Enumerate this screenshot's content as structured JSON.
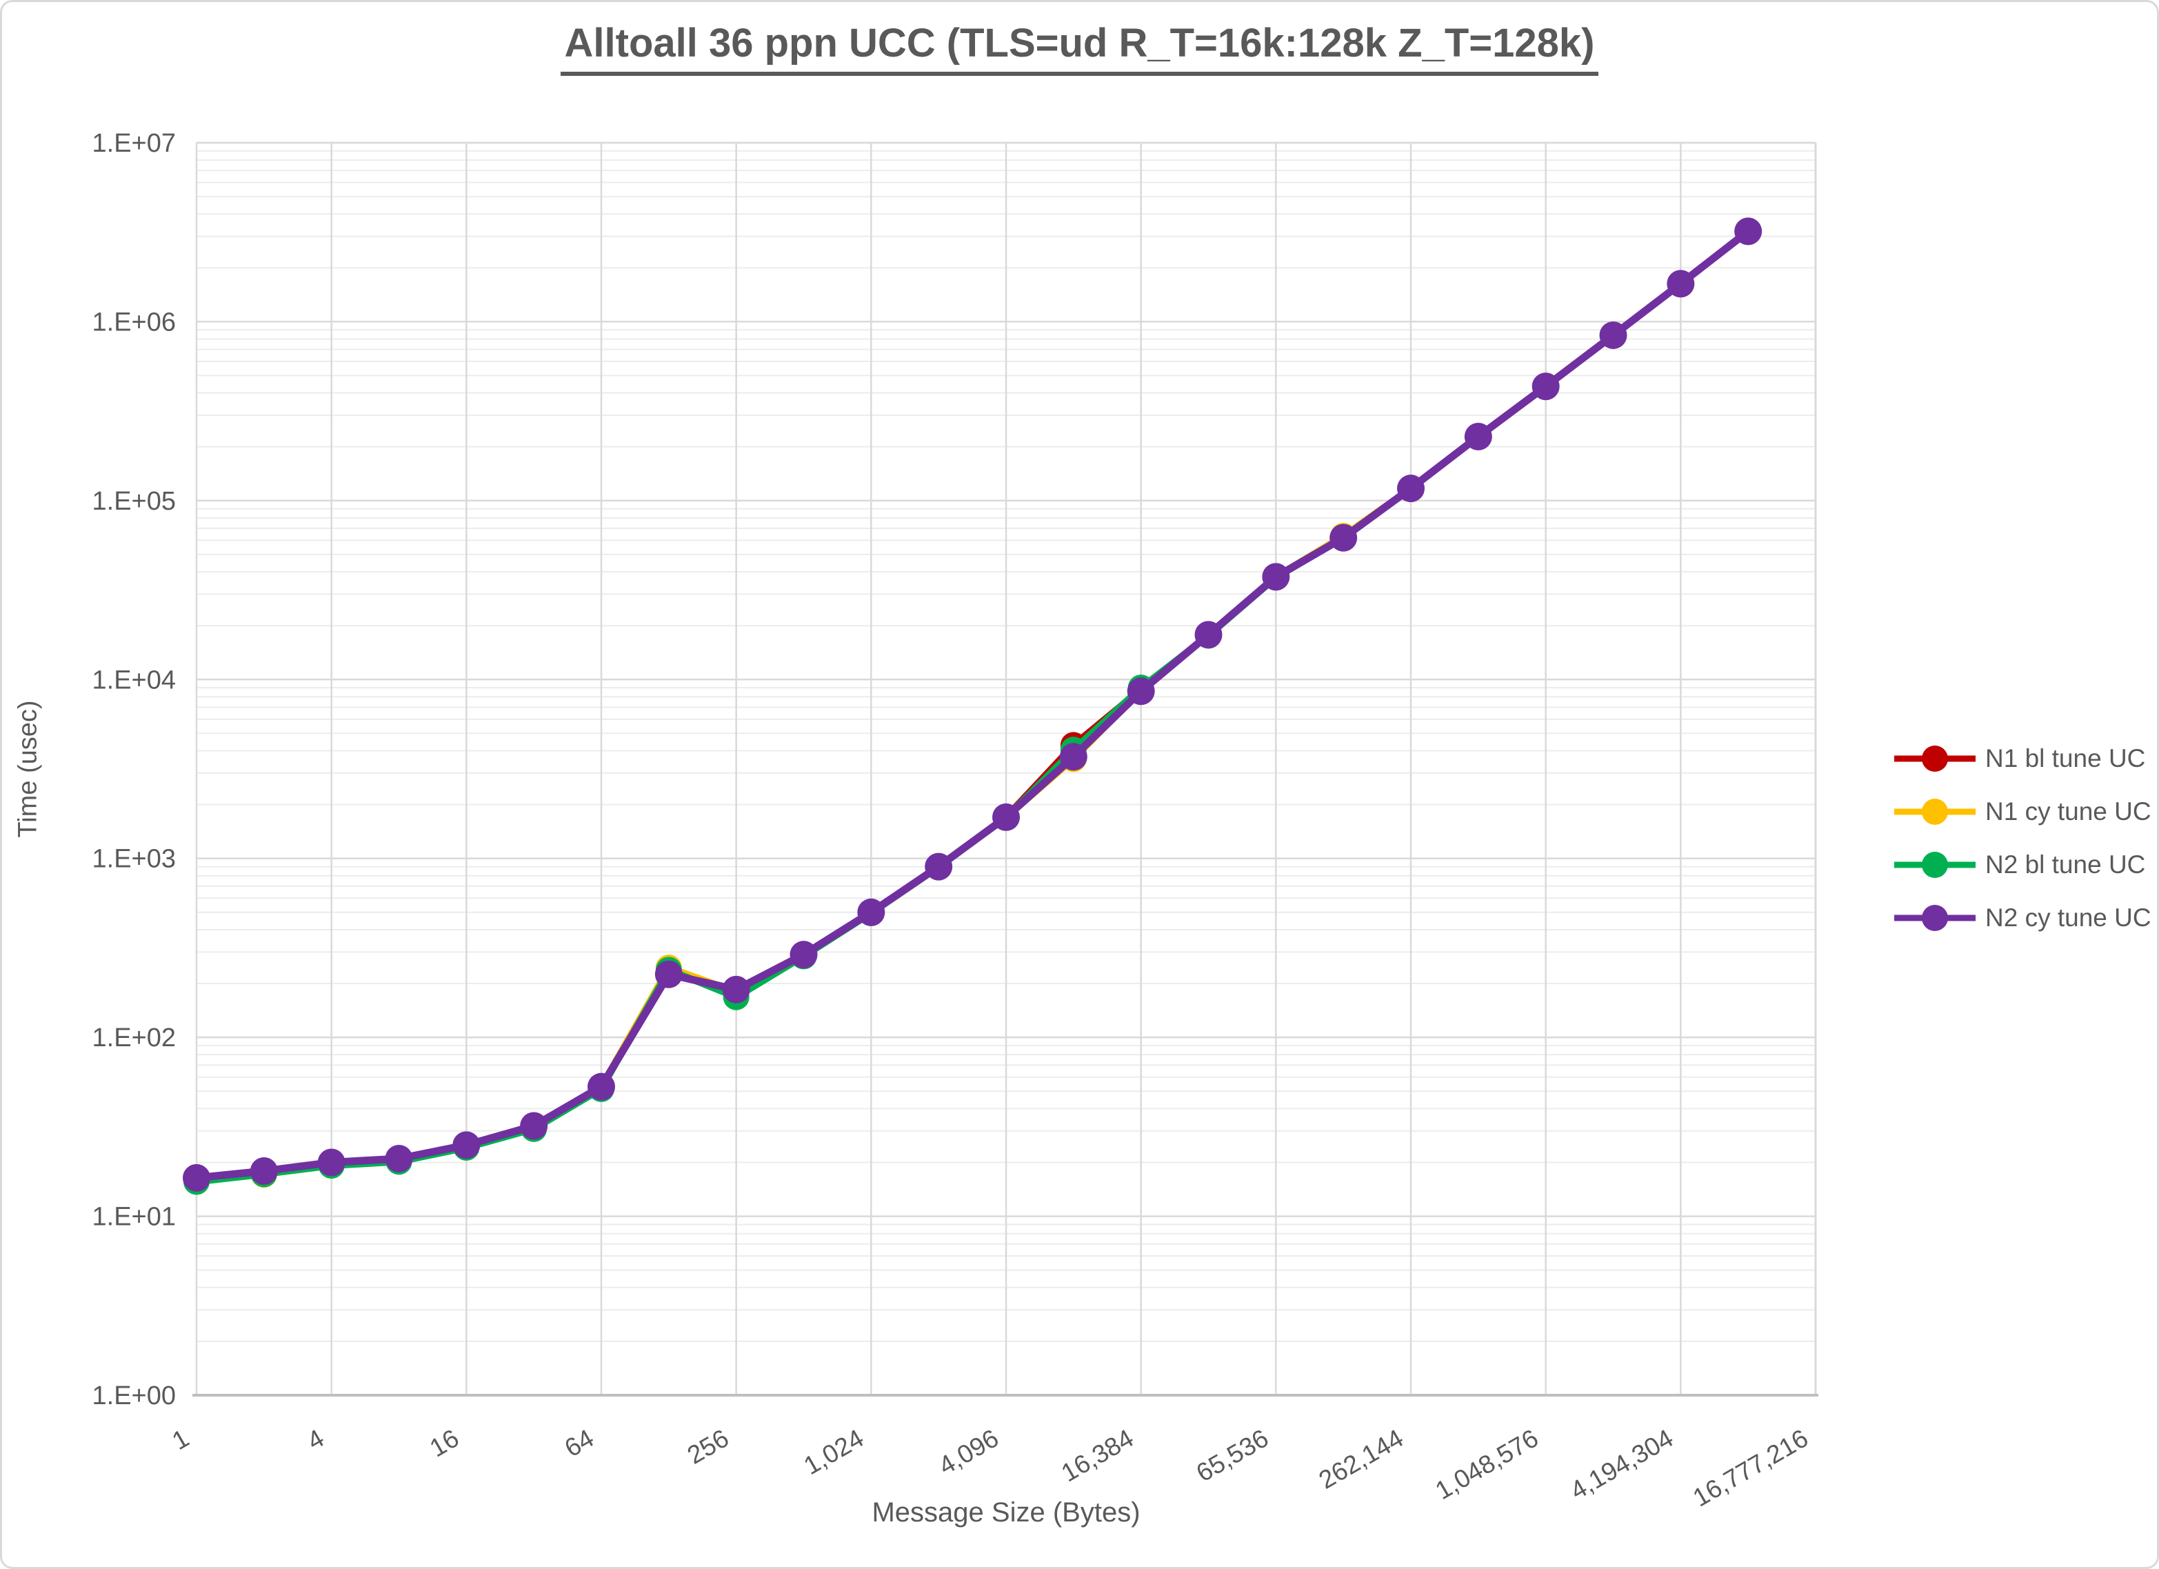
{
  "figure": {
    "title": "Alltoall 36 ppn UCC (TLS=ud R_T=16k:128k Z_T=128k)",
    "colors": {
      "text": "#595959",
      "grid_major": "#d9d9d9",
      "grid_minor": "#ececec",
      "axis_line": "#bfbfbf",
      "background": "#ffffff"
    }
  },
  "chart_data": {
    "type": "line",
    "title": "Alltoall 36 ppn UCC (TLS=ud R_T=16k:128k Z_T=128k)",
    "xlabel": "Message Size (Bytes)",
    "ylabel": "Time (usec)",
    "x_scale": "log2",
    "y_scale": "log10",
    "xlim": [
      1,
      16777216
    ],
    "ylim": [
      1,
      10000000
    ],
    "grid": true,
    "legend_position": "right",
    "x_tick_values": [
      1,
      4,
      16,
      64,
      256,
      1024,
      4096,
      16384,
      65536,
      262144,
      1048576,
      4194304,
      16777216
    ],
    "x_tick_labels": [
      "1",
      "4",
      "16",
      "64",
      "256",
      "1,024",
      "4,096",
      "16,384",
      "65,536",
      "262,144",
      "1,048,576",
      "4,194,304",
      "16,777,216"
    ],
    "y_tick_values": [
      1,
      10,
      100,
      1000,
      10000,
      100000,
      1000000,
      10000000
    ],
    "y_tick_labels": [
      "1.E+00",
      "1.E+01",
      "1.E+02",
      "1.E+03",
      "1.E+04",
      "1.E+05",
      "1.E+06",
      "1.E+07"
    ],
    "x": [
      1,
      2,
      4,
      8,
      16,
      32,
      64,
      128,
      256,
      512,
      1024,
      2048,
      4096,
      8192,
      16384,
      32768,
      65536,
      131072,
      262144,
      524288,
      1048576,
      2097152,
      4194304,
      8388608
    ],
    "series": [
      {
        "name": "N1 bl tune UC",
        "color": "#c00000",
        "values": [
          16.4,
          17.9,
          20,
          21,
          25,
          32,
          53,
          230,
          183,
          290,
          500,
          900,
          1700,
          4300,
          8800,
          17800,
          37500,
          62000,
          117000,
          228000,
          435000,
          840000,
          1630000,
          3200000
        ]
      },
      {
        "name": "N1 cy tune UC",
        "color": "#ffc000",
        "values": [
          16.4,
          17.1,
          20,
          21,
          25,
          32,
          53,
          245,
          180,
          288,
          500,
          900,
          1700,
          3600,
          8700,
          17800,
          37500,
          63500,
          117000,
          228000,
          435000,
          840000,
          1630000,
          3200000
        ]
      },
      {
        "name": "N2 bl tune UC",
        "color": "#00b050",
        "values": [
          15.6,
          17.2,
          19.2,
          20.2,
          24.2,
          30.8,
          51.5,
          238,
          168,
          284,
          495,
          895,
          1690,
          4050,
          9000,
          17600,
          37200,
          62000,
          117000,
          228000,
          435000,
          840000,
          1630000,
          3200000
        ]
      },
      {
        "name": "N2 cy tune UC",
        "color": "#7030a0",
        "values": [
          16.4,
          17.9,
          20,
          21,
          25,
          32,
          53,
          225,
          185,
          290,
          500,
          900,
          1700,
          3700,
          8600,
          17800,
          37500,
          62000,
          117000,
          228000,
          435000,
          840000,
          1630000,
          3200000
        ]
      }
    ]
  }
}
